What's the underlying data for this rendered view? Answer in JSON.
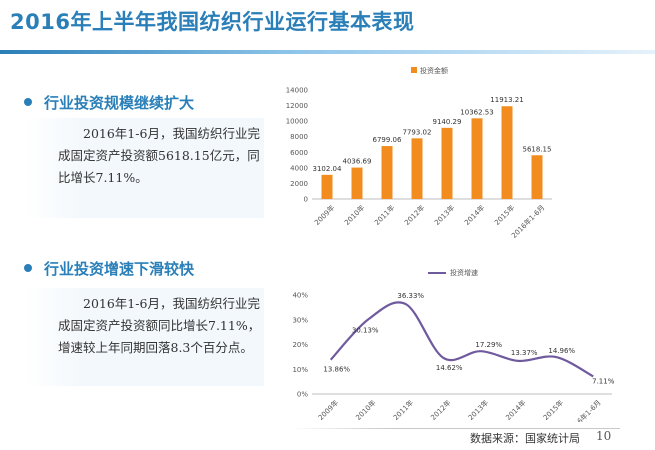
{
  "slide": {
    "title": "2016年上半年我国纺织行业运行基本表现",
    "source": "数据来源：国家统计局",
    "page_number": "10"
  },
  "sections": [
    {
      "heading": "行业投资规模继续扩大",
      "body": "2016年1-6月，我国纺织行业完成固定资产投资额5618.15亿元，同比增长7.11%。"
    },
    {
      "heading": "行业投资增速下滑较快",
      "body": "2016年1-6月，我国纺织行业完成固定资产投资额同比增长7.11%，增速较上年同期回落8.3个百分点。"
    }
  ],
  "colors": {
    "accent": "#2a7fb8",
    "bar": "#f28c1e",
    "line": "#6f5a9e"
  },
  "chart_data": [
    {
      "type": "bar",
      "title": "",
      "categories": [
        "2009年",
        "2010年",
        "2011年",
        "2012年",
        "2013年",
        "2014年",
        "2015年",
        "2016年1-6月"
      ],
      "series": [
        {
          "name": "投资金额",
          "values": [
            3102.04,
            4036.69,
            6799.06,
            7793.02,
            9140.29,
            10362.53,
            11913.21,
            5618.15
          ]
        }
      ],
      "data_labels": [
        "3102.04",
        "4036.69",
        "6799.06",
        "7793.02",
        "9140.29",
        "10362.53",
        "11913.21",
        "5618.15"
      ],
      "ylim": [
        0,
        14000
      ],
      "yticks": [
        0,
        2000,
        4000,
        6000,
        8000,
        10000,
        12000,
        14000
      ],
      "ytick_labels": [
        "0",
        "2000",
        "4000",
        "6000",
        "8000",
        "10000",
        "12000",
        "14000"
      ],
      "legend_position": "top-center",
      "grid": false
    },
    {
      "type": "line",
      "title": "",
      "categories": [
        "2009年",
        "2010年",
        "2011年",
        "2012年",
        "2013年",
        "2014年",
        "2015年",
        "2016年1-6月"
      ],
      "series": [
        {
          "name": "投资增速",
          "values": [
            13.86,
            30.13,
            36.33,
            14.62,
            17.29,
            13.37,
            14.96,
            7.11
          ]
        }
      ],
      "data_labels": [
        "13.86%",
        "30.13%",
        "36.33%",
        "14.62%",
        "17.29%",
        "13.37%",
        "14.96%",
        "7.11%"
      ],
      "ylim": [
        0,
        40
      ],
      "yticks": [
        0,
        10,
        20,
        30,
        40
      ],
      "ytick_labels": [
        "0%",
        "10%",
        "20%",
        "30%",
        "40%"
      ],
      "legend_position": "top-center",
      "smooth": true,
      "grid": false
    }
  ]
}
